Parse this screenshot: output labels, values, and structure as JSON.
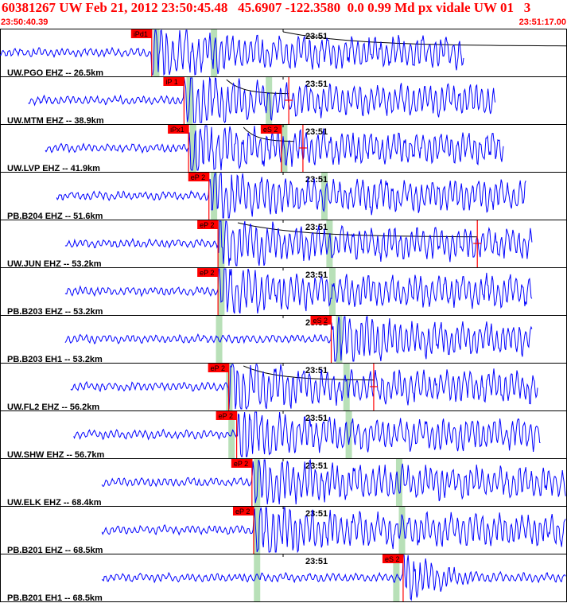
{
  "header": {
    "title": "60381267 UW Feb 21, 2012 23:50:45.48   45.6907 -122.3580  0.0 0.99 Md px vidale UW 01   3",
    "start_time": "23:50:40.39",
    "end_time": "23:51:17.00"
  },
  "colors": {
    "trace": "#0000ff",
    "pick": "#ff0000",
    "pick_label_bg": "#ff0000",
    "theoretical_window": "#b8e0b8",
    "panel_border": "#000000",
    "decay_curve": "#000000"
  },
  "chart_data": {
    "type": "seismogram",
    "time_range": [
      "23:50:40.39",
      "23:51:17.00"
    ],
    "minute_label": "23:51",
    "traces": [
      {
        "label": "UW.PGO EHZ -- 26.5km",
        "start": 0.0,
        "end": 0.82,
        "onset": 0.268,
        "amp": 0.3,
        "picks": [
          {
            "label": "iPd1",
            "t": 0.268
          }
        ],
        "windows": [
          0.276,
          0.378
        ],
        "coda": {
          "from": 0.5,
          "to": 1.0
        },
        "emergent": false
      },
      {
        "label": "UW.MTM EHZ -- 38.9km",
        "start": 0.05,
        "end": 0.875,
        "onset": 0.325,
        "amp": 0.38,
        "picks": [
          {
            "label": "iP 1",
            "t": 0.325
          },
          {
            "label": "",
            "t": 0.51
          }
        ],
        "windows": [
          0.335,
          0.475
        ],
        "coda": {
          "from": 0.4,
          "to": 0.51
        },
        "emergent": false
      },
      {
        "label": "UW.LVP EHZ -- 41.9km",
        "start": 0.08,
        "end": 0.89,
        "onset": 0.333,
        "amp": 0.38,
        "picks": [
          {
            "label": "iPx1",
            "t": 0.333
          },
          {
            "label": "eS 2",
            "t": 0.497
          },
          {
            "label": "",
            "t": 0.535
          }
        ],
        "windows": [
          0.341,
          0.502
        ],
        "coda": {
          "from": 0.43,
          "to": 0.52
        },
        "emergent": false
      },
      {
        "label": "PB.B204 EHZ -- 51.6km",
        "start": 0.1,
        "end": 0.93,
        "onset": 0.369,
        "amp": 0.35,
        "picks": [
          {
            "label": "eP 2",
            "t": 0.369
          }
        ],
        "windows": [
          0.378,
          0.573
        ],
        "coda": null,
        "emergent": false
      },
      {
        "label": "UW.JUN EHZ -- 53.2km",
        "start": 0.115,
        "end": 0.94,
        "onset": 0.385,
        "amp": 0.3,
        "picks": [
          {
            "label": "eP 2",
            "t": 0.385
          },
          {
            "label": "",
            "t": 0.843
          }
        ],
        "windows": [
          0.391,
          0.582
        ],
        "coda": {
          "from": 0.42,
          "to": 0.843
        },
        "emergent": false
      },
      {
        "label": "PB.B203 EHZ -- 53.2km",
        "start": 0.115,
        "end": 0.94,
        "onset": 0.385,
        "amp": 0.35,
        "picks": [
          {
            "label": "eP 2",
            "t": 0.385
          }
        ],
        "windows": [
          0.391,
          0.587
        ],
        "coda": null,
        "emergent": false
      },
      {
        "label": "PB.B203 EH1 -- 53.2km",
        "start": 0.115,
        "end": 0.94,
        "onset": 0.585,
        "amp": 0.35,
        "picks": [
          {
            "label": "eS 2",
            "t": 0.585
          }
        ],
        "windows": [
          0.387,
          0.599
        ],
        "coda": null,
        "emergent": false
      },
      {
        "label": "UW.FL2 EHZ -- 56.2km",
        "start": 0.125,
        "end": 0.95,
        "onset": 0.404,
        "amp": 0.32,
        "picks": [
          {
            "label": "eP 2",
            "t": 0.404
          },
          {
            "label": "",
            "t": 0.66
          }
        ],
        "windows": [
          0.405,
          0.612
        ],
        "coda": {
          "from": 0.43,
          "to": 0.66
        },
        "emergent": false
      },
      {
        "label": "UW.SHW EHZ -- 56.7km",
        "start": 0.13,
        "end": 0.955,
        "onset": 0.418,
        "amp": 0.28,
        "picks": [
          {
            "label": "eP 2",
            "t": 0.418
          }
        ],
        "windows": [
          0.409,
          0.616
        ],
        "coda": null,
        "emergent": false
      },
      {
        "label": "UW.ELK EHZ -- 68.4km",
        "start": 0.18,
        "end": 1.0,
        "onset": 0.445,
        "amp": 0.35,
        "picks": [
          {
            "label": "eP 2",
            "t": 0.445
          }
        ],
        "windows": [
          0.454,
          0.705
        ],
        "coda": null,
        "emergent": false
      },
      {
        "label": "PB.B201 EHZ -- 68.5km",
        "start": 0.18,
        "end": 1.0,
        "onset": 0.448,
        "amp": 0.35,
        "picks": [
          {
            "label": "eP 2",
            "t": 0.448
          }
        ],
        "windows": [
          0.454,
          0.71
        ],
        "coda": null,
        "emergent": false
      },
      {
        "label": "PB.B201 EH1 -- 68.5km",
        "start": 0.18,
        "end": 1.0,
        "onset": 0.712,
        "amp": 0.4,
        "picks": [
          {
            "label": "eS 2",
            "t": 0.712
          }
        ],
        "windows": [
          0.454,
          0.7
        ],
        "coda": null,
        "emergent": true
      }
    ]
  }
}
